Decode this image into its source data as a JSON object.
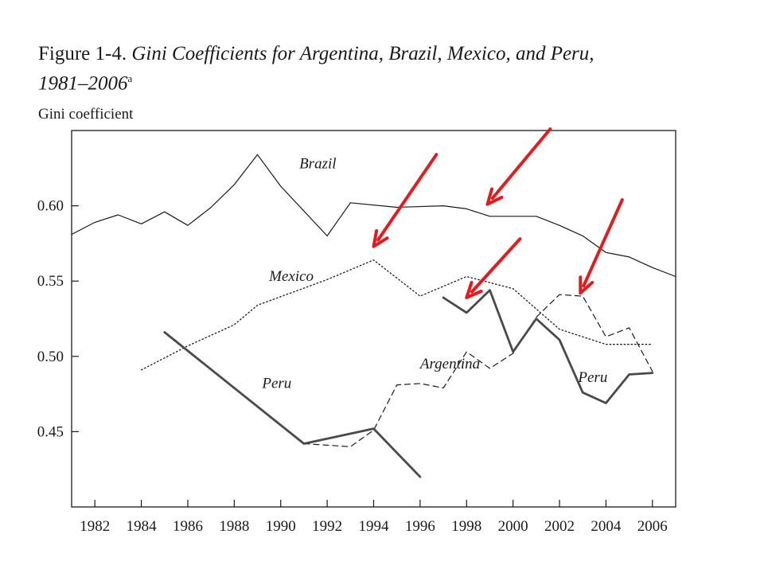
{
  "header": {
    "figure_number": "Figure 1-4.",
    "title_line1": "Gini Coefficients for Argentina, Brazil, Mexico, and Peru,",
    "title_line2": "1981–2006",
    "footnote_mark": "a"
  },
  "chart_data": {
    "type": "line",
    "title": "Gini Coefficients for Argentina, Brazil, Mexico, and Peru, 1981–2006",
    "ylabel": "Gini coefficient",
    "xlabel": "",
    "xlim": [
      1981,
      2007
    ],
    "ylim": [
      0.4,
      0.65
    ],
    "xticks": [
      1982,
      1984,
      1986,
      1988,
      1990,
      1992,
      1994,
      1996,
      1998,
      2000,
      2002,
      2004,
      2006
    ],
    "xtick_labels": [
      "1982",
      "1984",
      "1986",
      "1988",
      "1990",
      "1992",
      "1994",
      "1996",
      "1998",
      "2000",
      "2002",
      "2004",
      "2006"
    ],
    "yticks": [
      0.45,
      0.5,
      0.55,
      0.6
    ],
    "ytick_labels": [
      "0.45",
      "0.50",
      "0.55",
      "0.60"
    ],
    "grid": false,
    "legend": "inline labels",
    "series": [
      {
        "name": "Brazil",
        "style": "solid-thin",
        "color": "#1a1a1a",
        "points": [
          [
            1981,
            0.581
          ],
          [
            1982,
            0.589
          ],
          [
            1983,
            0.594
          ],
          [
            1984,
            0.588
          ],
          [
            1985,
            0.596
          ],
          [
            1986,
            0.587
          ],
          [
            1987,
            0.599
          ],
          [
            1988,
            0.614
          ],
          [
            1989,
            0.634
          ],
          [
            1990,
            0.613
          ],
          [
            1992,
            0.58
          ],
          [
            1993,
            0.602
          ],
          [
            1995,
            0.599
          ],
          [
            1997,
            0.6
          ],
          [
            1998,
            0.598
          ],
          [
            1999,
            0.593
          ],
          [
            2001,
            0.593
          ],
          [
            2002,
            0.587
          ],
          [
            2003,
            0.58
          ],
          [
            2004,
            0.569
          ],
          [
            2005,
            0.566
          ],
          [
            2006,
            0.559
          ],
          [
            2007,
            0.553
          ]
        ]
      },
      {
        "name": "Mexico",
        "style": "dotted",
        "color": "#1a1a1a",
        "points": [
          [
            1984,
            0.491
          ],
          [
            1986,
            0.507
          ],
          [
            1988,
            0.521
          ],
          [
            1989,
            0.534
          ],
          [
            1992,
            0.551
          ],
          [
            1994,
            0.564
          ],
          [
            1996,
            0.54
          ],
          [
            1998,
            0.553
          ],
          [
            2000,
            0.545
          ],
          [
            2002,
            0.518
          ],
          [
            2004,
            0.508
          ],
          [
            2006,
            0.508
          ]
        ]
      },
      {
        "name": "Argentina",
        "style": "dashed",
        "color": "#1a1a1a",
        "points": [
          [
            1991,
            0.442
          ],
          [
            1992,
            0.441
          ],
          [
            1993,
            0.44
          ],
          [
            1994,
            0.451
          ],
          [
            1995,
            0.481
          ],
          [
            1996,
            0.482
          ],
          [
            1997,
            0.479
          ],
          [
            1998,
            0.503
          ],
          [
            1999,
            0.492
          ],
          [
            2000,
            0.502
          ],
          [
            2001,
            0.526
          ],
          [
            2002,
            0.541
          ],
          [
            2003,
            0.54
          ],
          [
            2004,
            0.513
          ],
          [
            2005,
            0.519
          ],
          [
            2006,
            0.49
          ]
        ]
      },
      {
        "name": "Peru",
        "style": "solid-thick",
        "color": "#4a4a4a",
        "segments": [
          [
            [
              1985,
              0.516
            ],
            [
              1991,
              0.442
            ],
            [
              1994,
              0.452
            ],
            [
              1996,
              0.42
            ]
          ],
          [
            [
              1997,
              0.539
            ],
            [
              1998,
              0.529
            ],
            [
              1999,
              0.544
            ],
            [
              2000,
              0.503
            ],
            [
              2001,
              0.525
            ],
            [
              2002,
              0.511
            ],
            [
              2003,
              0.476
            ],
            [
              2004,
              0.469
            ],
            [
              2005,
              0.488
            ],
            [
              2006,
              0.489
            ]
          ]
        ]
      }
    ],
    "annotations": [
      {
        "text": "Brazil",
        "x": 1990.8,
        "y": 0.625
      },
      {
        "text": "Mexico",
        "x": 1989.5,
        "y": 0.55
      },
      {
        "text": "Argentina",
        "x": 1996.0,
        "y": 0.492
      },
      {
        "text": "Peru",
        "x": 1989.2,
        "y": 0.479
      },
      {
        "text": "Peru",
        "x": 2002.8,
        "y": 0.483
      }
    ],
    "arrows": [
      {
        "color": "#e8191c",
        "from": [
          1996.7,
          0.634
        ],
        "to": [
          1994.0,
          0.573
        ]
      },
      {
        "color": "#e8191c",
        "from": [
          2001.6,
          0.651
        ],
        "to": [
          1998.9,
          0.601
        ]
      },
      {
        "color": "#e8191c",
        "from": [
          2000.3,
          0.578
        ],
        "to": [
          1998.0,
          0.539
        ]
      },
      {
        "color": "#e8191c",
        "from": [
          2004.7,
          0.604
        ],
        "to": [
          2002.9,
          0.542
        ]
      }
    ]
  }
}
